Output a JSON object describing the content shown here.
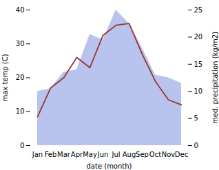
{
  "chart_data": {
    "type": "line",
    "categories": [
      "Jan",
      "Feb",
      "Mar",
      "Apr",
      "May",
      "Jun",
      "Jul",
      "Aug",
      "Sep",
      "Oct",
      "Nov",
      "Dec"
    ],
    "xlabel": "date (month)",
    "ylabel": "max temp (C)",
    "y2label": "med. precipitation (kg/m2)",
    "series": [
      {
        "type": "area",
        "axis": "y2",
        "color": "#b8c4ee",
        "values": [
          10.0,
          10.5,
          13.5,
          14.0,
          20.5,
          19.5,
          25.0,
          22.5,
          18.0,
          13.0,
          12.5,
          11.5
        ]
      },
      {
        "type": "line",
        "color": "#993333",
        "values": [
          8.5,
          17.0,
          20.0,
          26.0,
          23.0,
          32.5,
          35.5,
          36.0,
          27.0,
          19.0,
          13.5,
          12.0
        ]
      }
    ],
    "ylim": [
      0,
      40
    ],
    "yticks": [
      0,
      10,
      20,
      30,
      40
    ],
    "y2lim": [
      0,
      25
    ],
    "y2ticks": [
      0,
      5,
      10,
      15,
      20,
      25
    ],
    "grid": false
  }
}
